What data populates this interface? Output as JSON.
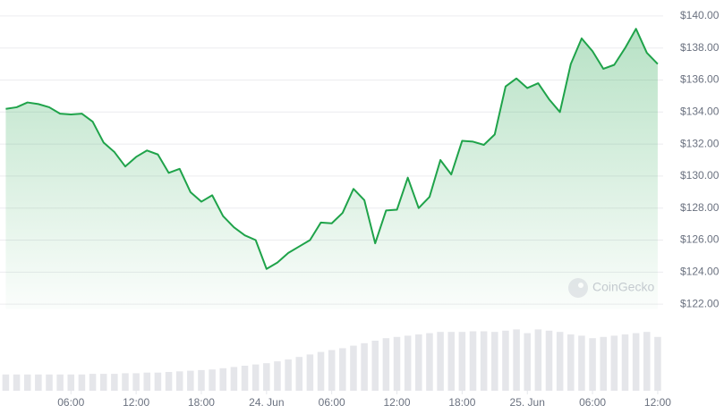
{
  "chart_data": {
    "type": "line",
    "x": [
      0,
      1,
      2,
      3,
      4,
      5,
      6,
      7,
      8,
      9,
      10,
      11,
      12,
      13,
      14,
      15,
      16,
      17,
      18,
      19,
      20,
      21,
      22,
      23,
      24,
      25,
      26,
      27,
      28,
      29,
      30,
      31,
      32,
      33,
      34,
      35,
      36,
      37,
      38,
      39,
      40,
      41,
      42,
      43,
      44,
      45,
      46,
      47,
      48,
      49,
      50,
      51,
      52,
      53,
      54,
      55,
      56,
      57,
      58,
      59,
      60
    ],
    "series": [
      {
        "color": "#1fa34a",
        "values": [
          134.2,
          134.3,
          134.6,
          134.5,
          134.3,
          133.9,
          133.85,
          133.9,
          133.4,
          132.1,
          131.5,
          130.6,
          131.2,
          131.6,
          131.35,
          130.2,
          130.45,
          129.0,
          128.4,
          128.8,
          127.5,
          126.8,
          126.3,
          126.0,
          124.2,
          124.6,
          125.2,
          125.6,
          126.0,
          127.1,
          127.05,
          127.7,
          129.2,
          128.5,
          125.8,
          127.85,
          127.9,
          129.9,
          128.0,
          128.7,
          131.0,
          130.1,
          132.2,
          132.15,
          131.95,
          132.6,
          135.6,
          136.1,
          135.5,
          135.8,
          134.8,
          134.0,
          137.0,
          138.6,
          137.8,
          136.7,
          136.95,
          138.0,
          139.2,
          137.7,
          137.0
        ]
      }
    ],
    "xlim": [
      -0.2,
      60.5
    ],
    "xticks": [
      {
        "value": 6,
        "label": "06:00"
      },
      {
        "value": 12,
        "label": "12:00"
      },
      {
        "value": 18,
        "label": "18:00"
      },
      {
        "value": 24,
        "label": "24. Jun"
      },
      {
        "value": 30,
        "label": "06:00"
      },
      {
        "value": 36,
        "label": "12:00"
      },
      {
        "value": 42,
        "label": "18:00"
      },
      {
        "value": 48,
        "label": "25. Jun"
      },
      {
        "value": 54,
        "label": "06:00"
      },
      {
        "value": 60,
        "label": "12:00"
      }
    ],
    "ylim": [
      121.7,
      141
    ],
    "yticks": [
      {
        "value": 122,
        "label": "$122.00"
      },
      {
        "value": 124,
        "label": "$124.00"
      },
      {
        "value": 126,
        "label": "$126.00"
      },
      {
        "value": 128,
        "label": "$128.00"
      },
      {
        "value": 130,
        "label": "$130.00"
      },
      {
        "value": 132,
        "label": "$132.00"
      },
      {
        "value": 134,
        "label": "$134.00"
      },
      {
        "value": 136,
        "label": "$136.00"
      },
      {
        "value": 138,
        "label": "$138.00"
      },
      {
        "value": 140,
        "label": "$140.00"
      }
    ],
    "grid": true,
    "area": true,
    "volume": {
      "color": "#e5e6ea",
      "ylim": [
        0,
        100
      ],
      "values": [
        26,
        26,
        26,
        26,
        26,
        26,
        26,
        26,
        27,
        27,
        27,
        28,
        28,
        29,
        29,
        30,
        31,
        32,
        33,
        34,
        36,
        38,
        40,
        42,
        44,
        47,
        50,
        54,
        58,
        62,
        65,
        68,
        72,
        76,
        80,
        84,
        86,
        88,
        90,
        92,
        94,
        94,
        94,
        95,
        95,
        94,
        96,
        98,
        92,
        98,
        96,
        94,
        90,
        88,
        84,
        86,
        88,
        90,
        92,
        94,
        86
      ]
    },
    "watermark": "CoinGecko"
  }
}
